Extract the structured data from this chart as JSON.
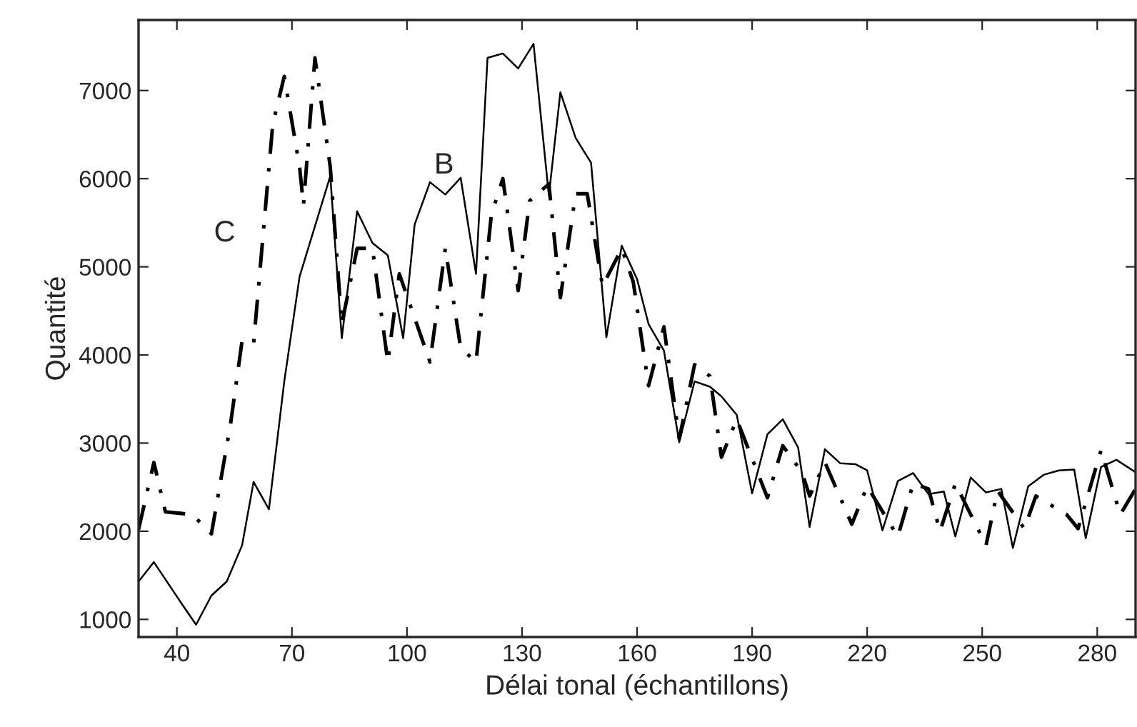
{
  "chart_data": {
    "type": "line",
    "xlabel": "Délai tonal (échantillons)",
    "ylabel": "Quantité",
    "xlim": [
      30,
      290
    ],
    "ylim": [
      800,
      7800
    ],
    "xticks": [
      40,
      70,
      100,
      130,
      160,
      190,
      220,
      250,
      280
    ],
    "yticks": [
      1000,
      2000,
      3000,
      4000,
      5000,
      6000,
      7000
    ],
    "grid": false,
    "legend": false,
    "marker": "none",
    "series": [
      {
        "name": "B",
        "color": "#000000",
        "line_style": "solid",
        "x": [
          30,
          34,
          42,
          45,
          49,
          53,
          57,
          60,
          64,
          68,
          72,
          80,
          83,
          87,
          91,
          95,
          99,
          102,
          106,
          110,
          114,
          118,
          121,
          125,
          129,
          133,
          137,
          140,
          144,
          148,
          152,
          156,
          160,
          163,
          167,
          171,
          175,
          179,
          182,
          186,
          190,
          194,
          198,
          202,
          205,
          209,
          213,
          217,
          220,
          224,
          228,
          232,
          236,
          240,
          243,
          247,
          251,
          255,
          258,
          262,
          266,
          270,
          274,
          277,
          281,
          285,
          290
        ],
        "values": [
          1430,
          1650,
          1130,
          940,
          1270,
          1430,
          1840,
          2560,
          2250,
          3700,
          4890,
          6030,
          4190,
          5630,
          5270,
          5130,
          4190,
          5480,
          5960,
          5820,
          6010,
          4920,
          7370,
          7420,
          7250,
          7530,
          5810,
          6980,
          6460,
          6180,
          4200,
          5240,
          4860,
          4350,
          4050,
          3010,
          3700,
          3640,
          3530,
          3320,
          2430,
          3100,
          3270,
          2950,
          2050,
          2930,
          2770,
          2760,
          2690,
          2010,
          2570,
          2660,
          2420,
          2450,
          1940,
          2610,
          2440,
          2480,
          1810,
          2510,
          2640,
          2690,
          2700,
          1920,
          2730,
          2810,
          2670
        ]
      },
      {
        "name": "C",
        "color": "#000000",
        "line_style": "dashed",
        "x": [
          30,
          34,
          37,
          44,
          49,
          54,
          57,
          60,
          65,
          68,
          72,
          73,
          76,
          80,
          83,
          87,
          91,
          95,
          98,
          106,
          110,
          114,
          118,
          122,
          125,
          129,
          132,
          137,
          140,
          144,
          147,
          151,
          156,
          159,
          163,
          167,
          171,
          175,
          179,
          182,
          186,
          194,
          198,
          203,
          205,
          209,
          216,
          220,
          228,
          232,
          236,
          239,
          243,
          251,
          254,
          261,
          264,
          272,
          275,
          281,
          286,
          290
        ],
        "values": [
          2020,
          2780,
          2220,
          2190,
          1970,
          3220,
          4160,
          4130,
          6620,
          7160,
          6130,
          5700,
          7370,
          6130,
          4350,
          5210,
          5210,
          3920,
          4920,
          3920,
          5210,
          4080,
          3920,
          5590,
          6000,
          4730,
          5750,
          5940,
          4650,
          5830,
          5830,
          4780,
          5210,
          4830,
          3650,
          4320,
          3050,
          3890,
          3760,
          2840,
          3270,
          2380,
          2970,
          2670,
          2400,
          2780,
          2080,
          2510,
          1940,
          2540,
          2480,
          2000,
          2540,
          1840,
          2460,
          2030,
          2400,
          2190,
          2030,
          2920,
          2190,
          2480
        ]
      }
    ]
  }
}
